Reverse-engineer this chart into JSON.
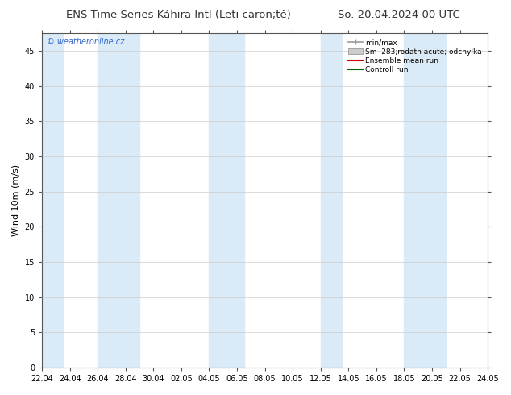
{
  "title_left": "ENS Time Series Káhira Intl (Leti caron;tě)",
  "title_right": "So. 20.04.2024 00 UTC",
  "ylabel": "Wind 10m (m/s)",
  "watermark": "© weatheronline.cz",
  "ylim": [
    0,
    47.5
  ],
  "yticks": [
    0,
    5,
    10,
    15,
    20,
    25,
    30,
    35,
    40,
    45
  ],
  "xlabel_dates": [
    "22.04",
    "24.04",
    "26.04",
    "28.04",
    "30.04",
    "02.05",
    "04.05",
    "06.05",
    "08.05",
    "10.05",
    "12.05",
    "14.05",
    "16.05",
    "18.05",
    "20.05",
    "22.05",
    "24.05"
  ],
  "num_days": 32,
  "legend_entries": [
    "min/max",
    "Sm  283;rodatn acute; odchylka",
    "Ensemble mean run",
    "Controll run"
  ],
  "color_band_blue": "#daeaf7",
  "color_ensemble_mean": "#cc0000",
  "color_control": "#006600",
  "color_minmax_line": "#999999",
  "color_spread_fill": "#ccddee",
  "background_color": "#ffffff",
  "title_fontsize": 9.5,
  "axis_fontsize": 8,
  "tick_fontsize": 7,
  "fig_width": 6.34,
  "fig_height": 4.9,
  "band_starts": [
    0,
    4,
    12,
    20,
    28
  ],
  "band_widths": [
    2,
    3,
    1,
    3,
    2
  ]
}
